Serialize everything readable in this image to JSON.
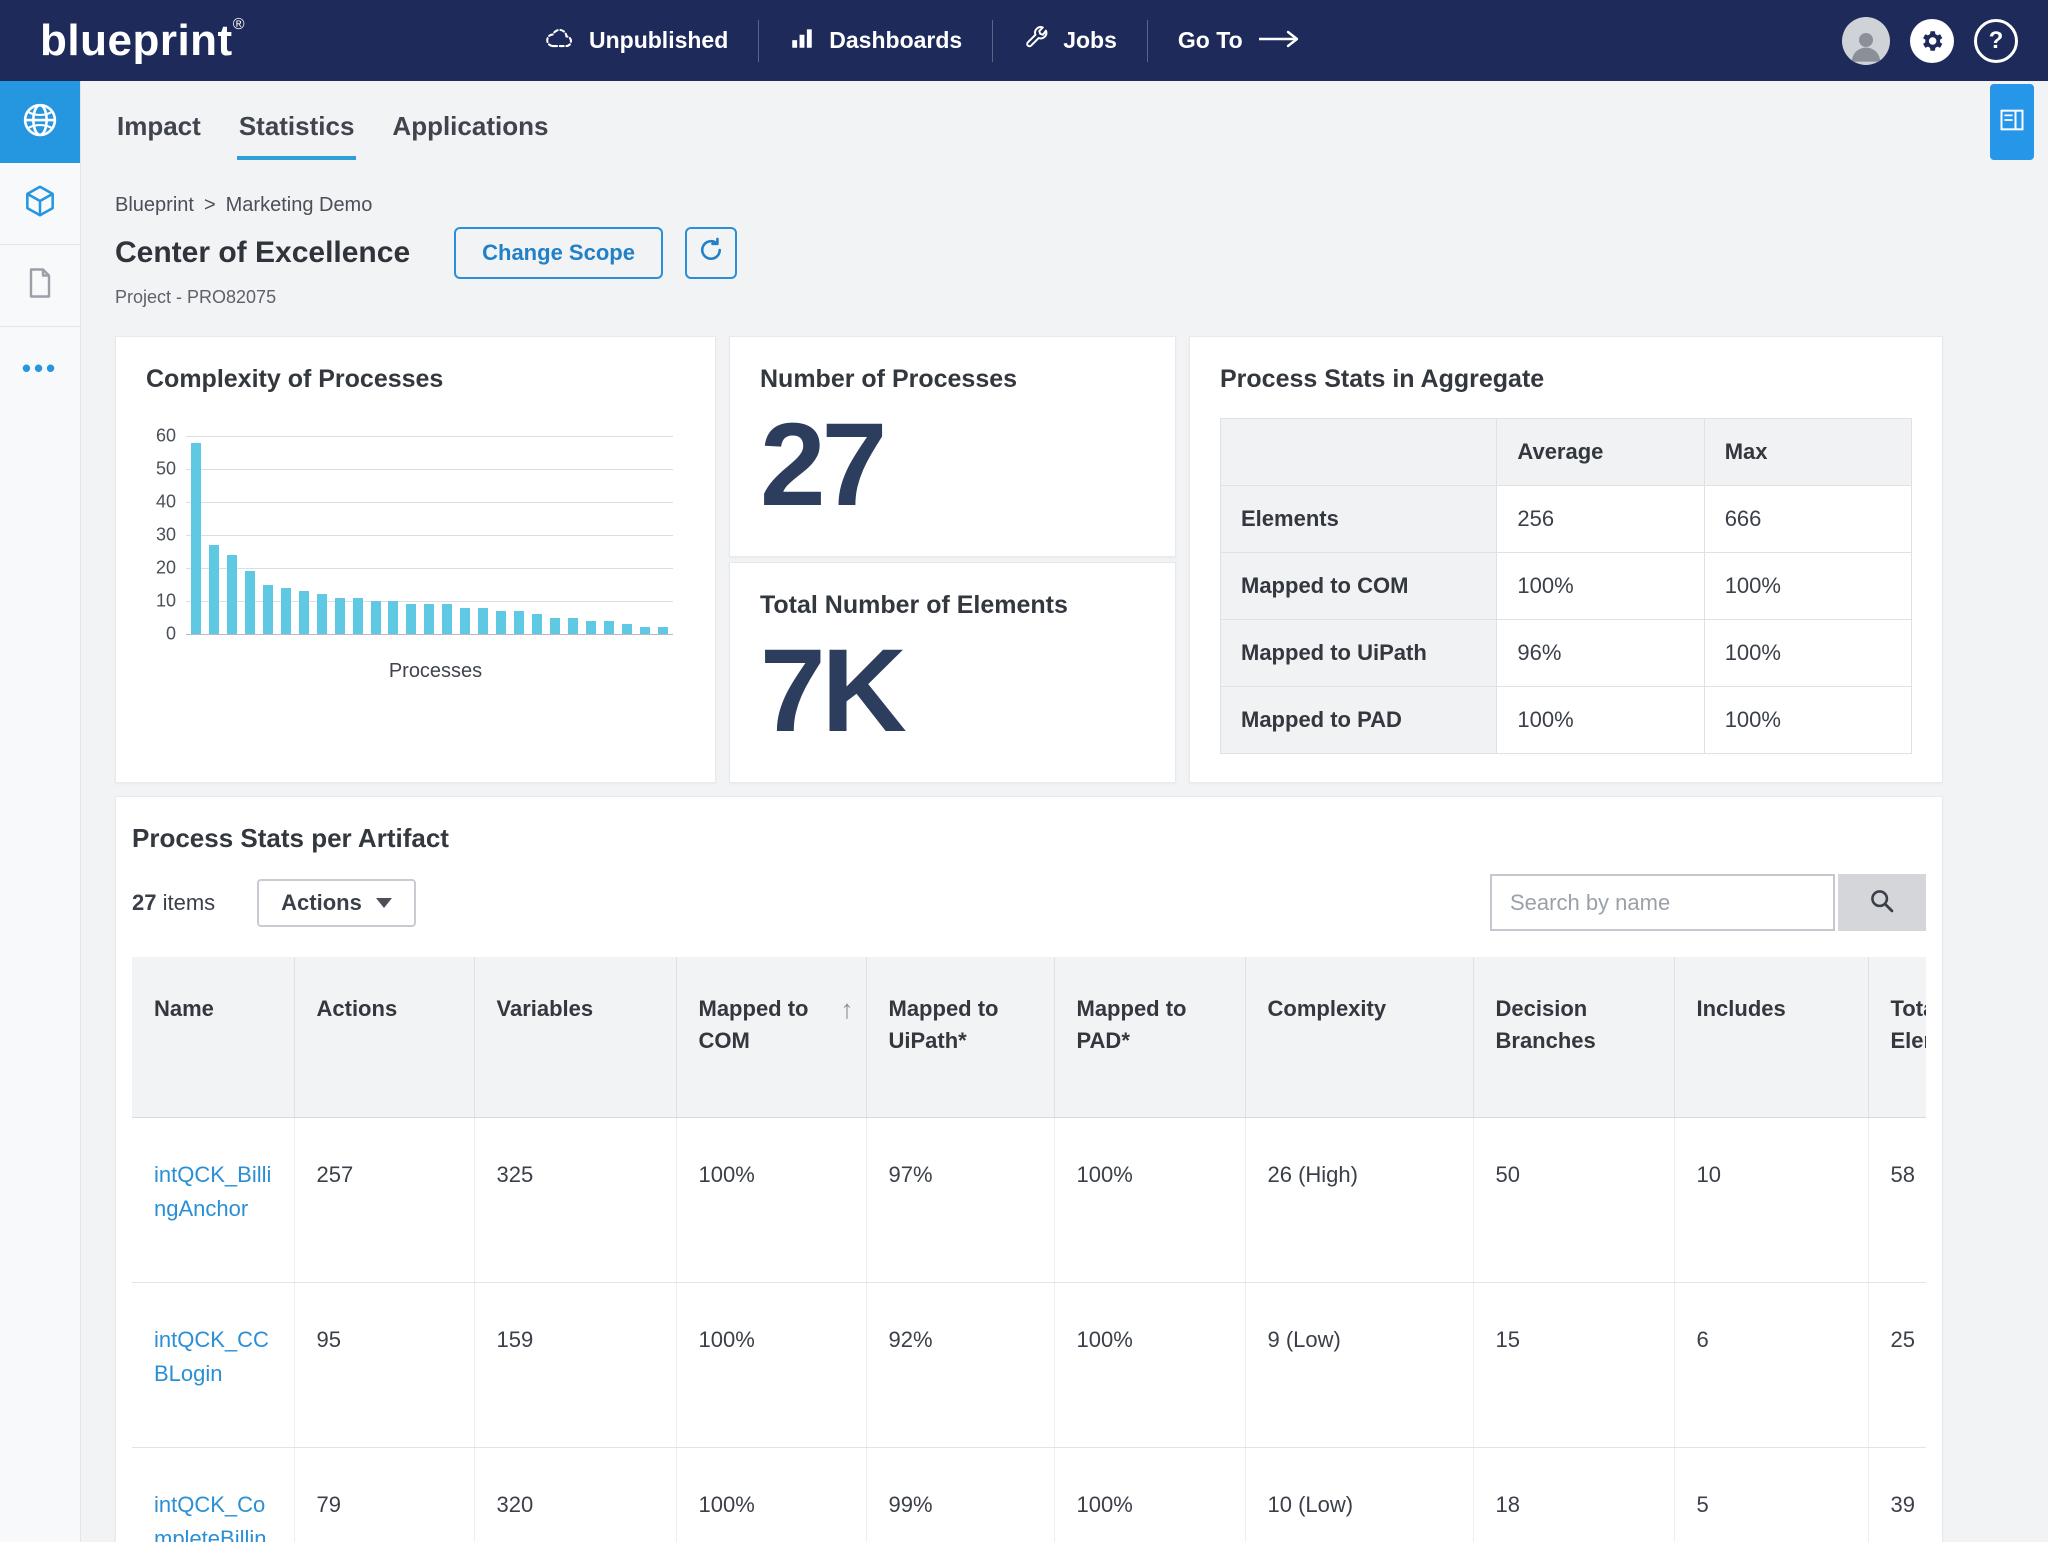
{
  "navbar": {
    "logo": "blueprint",
    "logo_mark": "®",
    "items": [
      {
        "label": "Unpublished",
        "icon": "cloud-icon"
      },
      {
        "label": "Dashboards",
        "icon": "bar-chart-icon"
      },
      {
        "label": "Jobs",
        "icon": "wrench-icon"
      },
      {
        "label": "Go To",
        "icon": "arrow-right-icon"
      }
    ]
  },
  "header_tabs": [
    {
      "label": "Impact",
      "active": false
    },
    {
      "label": "Statistics",
      "active": true
    },
    {
      "label": "Applications",
      "active": false
    }
  ],
  "breadcrumb": {
    "root": "Blueprint",
    "separator": ">",
    "current": "Marketing Demo"
  },
  "page": {
    "title": "Center of Excellence",
    "subtitle": "Project - PRO82075",
    "change_scope_label": "Change Scope"
  },
  "cards": {
    "complexity": {
      "title": "Complexity of Processes"
    },
    "processes": {
      "title": "Number of Processes",
      "value": "27"
    },
    "elements": {
      "title": "Total Number of Elements",
      "value": "7K"
    },
    "aggregate": {
      "title": "Process Stats in Aggregate",
      "columns": [
        "Average",
        "Max"
      ],
      "rows": [
        {
          "label": "Elements",
          "average": "256",
          "max": "666"
        },
        {
          "label": "Mapped to COM",
          "average": "100%",
          "max": "100%"
        },
        {
          "label": "Mapped to UiPath",
          "average": "96%",
          "max": "100%"
        },
        {
          "label": "Mapped to PAD",
          "average": "100%",
          "max": "100%"
        }
      ]
    }
  },
  "chart_data": {
    "type": "bar",
    "title": "Complexity of Processes",
    "xlabel": "Processes",
    "ylabel": "",
    "ylim": [
      0,
      60
    ],
    "yticks": [
      0,
      10,
      20,
      30,
      40,
      50,
      60
    ],
    "grid": true,
    "legend": false,
    "values": [
      58,
      27,
      24,
      19,
      15,
      14,
      13,
      12,
      11,
      11,
      10,
      10,
      9,
      9,
      9,
      8,
      8,
      7,
      7,
      6,
      5,
      5,
      4,
      4,
      3,
      2,
      2
    ],
    "bar_color": "#5fc9e3"
  },
  "artifact_table": {
    "title": "Process Stats per Artifact",
    "item_count": "27",
    "items_label": "items",
    "actions_label": "Actions",
    "search_placeholder": "Search by name",
    "sort_column": "Mapped to COM",
    "sort_direction": "asc",
    "columns": [
      "Name",
      "Actions",
      "Variables",
      "Mapped to COM",
      "Mapped to UiPath*",
      "Mapped to PAD*",
      "Complexity",
      "Decision Branches",
      "Includes",
      "Total Elements"
    ],
    "rows": [
      {
        "name": "intQCK_BillingAnchor",
        "actions": "257",
        "variables": "325",
        "mapped_com": "100%",
        "mapped_uipath": "97%",
        "mapped_pad": "100%",
        "complexity": "26 (High)",
        "decision_branches": "50",
        "includes": "10",
        "total_elements": "58"
      },
      {
        "name": "intQCK_CCBLogin",
        "actions": "95",
        "variables": "159",
        "mapped_com": "100%",
        "mapped_uipath": "92%",
        "mapped_pad": "100%",
        "complexity": "9 (Low)",
        "decision_branches": "15",
        "includes": "6",
        "total_elements": "25"
      },
      {
        "name": "intQCK_CompleteBillingA",
        "actions": "79",
        "variables": "320",
        "mapped_com": "100%",
        "mapped_uipath": "99%",
        "mapped_pad": "100%",
        "complexity": "10 (Low)",
        "decision_branches": "18",
        "includes": "5",
        "total_elements": "39"
      }
    ]
  },
  "colors": {
    "navy": "#1d2a5a",
    "accent_blue": "#2596e0",
    "tab_underline": "#2e9fd9",
    "link": "#2b8fd6",
    "bar": "#5fc9e3",
    "big_number": "#2d3d5e",
    "page_bg": "#f2f3f5"
  }
}
